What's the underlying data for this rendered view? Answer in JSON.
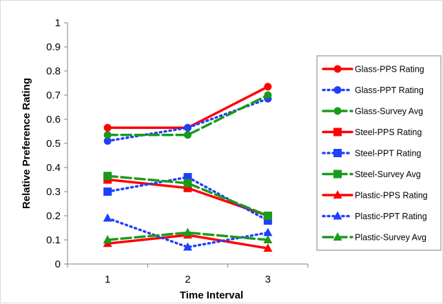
{
  "chart_data": {
    "type": "line",
    "title": "",
    "xlabel": "Time Interval",
    "ylabel": "Relative Preference Rating",
    "categories": [
      "1",
      "2",
      "3"
    ],
    "x": [
      1,
      2,
      3
    ],
    "xlim": [
      0.5,
      3.5
    ],
    "ylim": [
      0,
      1
    ],
    "yticks": [
      "0",
      "0.1",
      "0.2",
      "0.3",
      "0.4",
      "0.5",
      "0.6",
      "0.7",
      "0.8",
      "0.9",
      "1"
    ],
    "grid": false,
    "legend_position": "right",
    "series": [
      {
        "name": "Glass-PPS Rating",
        "values": [
          0.565,
          0.565,
          0.735
        ],
        "color": "#ff0000",
        "line_style": "solid",
        "marker": "circle"
      },
      {
        "name": "Glass-PPT Rating",
        "values": [
          0.51,
          0.565,
          0.685
        ],
        "color": "#1f3fff",
        "line_style": "dotted",
        "marker": "circle"
      },
      {
        "name": "Glass-Survey Avg",
        "values": [
          0.535,
          0.535,
          0.7
        ],
        "color": "#1a9a1a",
        "line_style": "dashed",
        "marker": "circle"
      },
      {
        "name": "Steel-PPS Rating",
        "values": [
          0.35,
          0.315,
          0.2
        ],
        "color": "#ff0000",
        "line_style": "solid",
        "marker": "square"
      },
      {
        "name": "Steel-PPT Rating",
        "values": [
          0.3,
          0.36,
          0.18
        ],
        "color": "#1f3fff",
        "line_style": "dotted",
        "marker": "square"
      },
      {
        "name": "Steel-Survey Avg",
        "values": [
          0.365,
          0.335,
          0.2
        ],
        "color": "#1a9a1a",
        "line_style": "dashed",
        "marker": "square"
      },
      {
        "name": "Plastic-PPS Rating",
        "values": [
          0.085,
          0.12,
          0.065
        ],
        "color": "#ff0000",
        "line_style": "solid",
        "marker": "triangle"
      },
      {
        "name": "Plastic-PPT Rating",
        "values": [
          0.19,
          0.07,
          0.13
        ],
        "color": "#1f3fff",
        "line_style": "dotted",
        "marker": "triangle"
      },
      {
        "name": "Plastic-Survey Avg",
        "values": [
          0.1,
          0.13,
          0.1
        ],
        "color": "#1a9a1a",
        "line_style": "dashed",
        "marker": "triangle"
      }
    ]
  }
}
